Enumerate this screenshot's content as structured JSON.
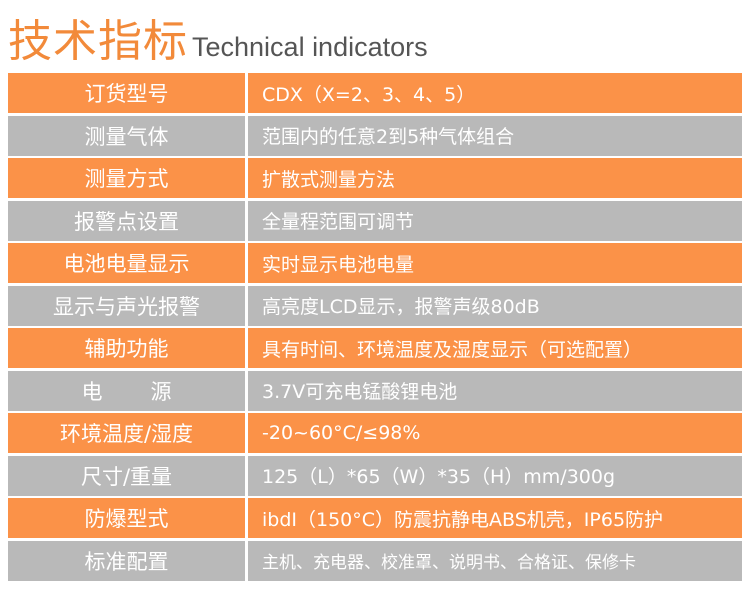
{
  "header": {
    "title_cn": "技术指标",
    "title_en": "Technical indicators"
  },
  "rows": [
    {
      "label": "订货型号",
      "value": "CDX（X=2、3、4、5）"
    },
    {
      "label": "测量气体",
      "value": "范围内的任意2到5种气体组合"
    },
    {
      "label": "测量方式",
      "value": "扩散式测量方法"
    },
    {
      "label": "报警点设置",
      "value": "全量程范围可调节"
    },
    {
      "label": "电池电量显示",
      "value": "实时显示电池电量"
    },
    {
      "label": "显示与声光报警",
      "value": "高亮度LCD显示，报警声级80dB"
    },
    {
      "label": "辅助功能",
      "value": "具有时间、环境温度及湿度显示（可选配置）"
    },
    {
      "label_part1": "电",
      "label_part2": "源",
      "value": "3.7V可充电锰酸锂电池"
    },
    {
      "label": "环境温度/湿度",
      "value": "-20~60°C/≤98%"
    },
    {
      "label": "尺寸/重量",
      "value": "125（L）*65（W）*35（H）mm/300g"
    },
    {
      "label": "防爆型式",
      "value": "ibdI（150°C）防震抗静电ABS机壳，IP65防护"
    },
    {
      "label": "标准配置",
      "value": "主机、充电器、校准罩、说明书、合格证、保修卡"
    }
  ],
  "colors": {
    "accent_orange": "#fb9248",
    "row_gray": "#b9b9b9",
    "title_orange": "#f28a3a"
  }
}
